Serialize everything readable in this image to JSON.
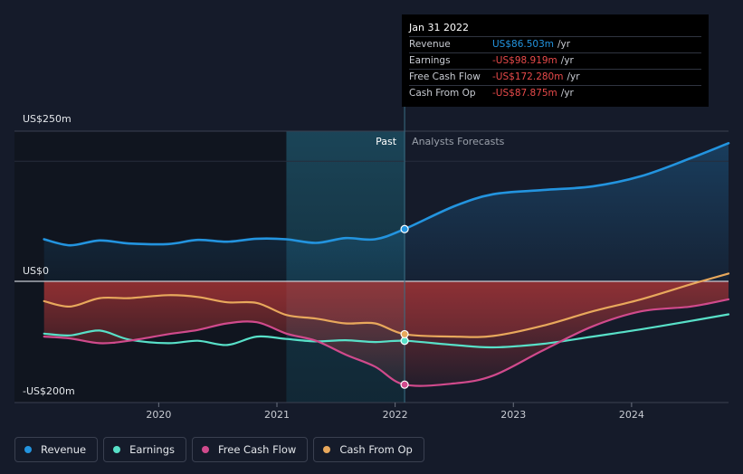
{
  "tooltip": {
    "date": "Jan 31 2022",
    "rows": [
      {
        "label": "Revenue",
        "value": "US$86.503m",
        "unit": "/yr",
        "color": "#2394df"
      },
      {
        "label": "Earnings",
        "value": "-US$98.919m",
        "unit": "/yr",
        "color": "#e84a4a"
      },
      {
        "label": "Free Cash Flow",
        "value": "-US$172.280m",
        "unit": "/yr",
        "color": "#e84a4a"
      },
      {
        "label": "Cash From Op",
        "value": "-US$87.875m",
        "unit": "/yr",
        "color": "#e84a4a"
      }
    ]
  },
  "legend": [
    {
      "label": "Revenue",
      "color": "#2394df"
    },
    {
      "label": "Earnings",
      "color": "#58e0c8"
    },
    {
      "label": "Free Cash Flow",
      "color": "#d04a8c"
    },
    {
      "label": "Cash From Op",
      "color": "#e8a85c"
    }
  ],
  "chart_data": {
    "type": "line",
    "y_labels": [
      "US$250m",
      "US$0",
      "-US$200m"
    ],
    "x_tick_labels": [
      "2020",
      "2021",
      "2022",
      "2023",
      "2024"
    ],
    "x_ticks": [
      2020.0,
      2021.0,
      2022.0,
      2023.0,
      2024.0
    ],
    "xlim": [
      2018.78,
      2024.82
    ],
    "ylim": [
      -200,
      250
    ],
    "past_label": "Past",
    "forecast_label": "Analysts Forecasts",
    "past_end": 2022.08,
    "highlight_start": 2021.08,
    "series": [
      {
        "name": "Revenue",
        "color": "#2394df",
        "x": [
          2019.03,
          2019.25,
          2019.5,
          2019.75,
          2020.08,
          2020.33,
          2020.58,
          2020.83,
          2021.08,
          2021.33,
          2021.58,
          2021.83,
          2022.08,
          2022.5,
          2022.83,
          2023.25,
          2023.67,
          2024.08,
          2024.5,
          2024.82
        ],
        "y": [
          70,
          60,
          68,
          63,
          62,
          69,
          66,
          71,
          70,
          64,
          72,
          70,
          87,
          125,
          145,
          152,
          158,
          175,
          205,
          230
        ]
      },
      {
        "name": "Earnings",
        "color": "#58e0c8",
        "x": [
          2019.03,
          2019.25,
          2019.5,
          2019.75,
          2020.08,
          2020.33,
          2020.58,
          2020.83,
          2021.08,
          2021.33,
          2021.58,
          2021.83,
          2022.08,
          2022.5,
          2022.83,
          2023.25,
          2023.67,
          2024.08,
          2024.5,
          2024.82
        ],
        "y": [
          -87,
          -90,
          -82,
          -97,
          -103,
          -99,
          -106,
          -92,
          -96,
          -100,
          -98,
          -101,
          -99,
          -106,
          -110,
          -104,
          -92,
          -80,
          -66,
          -55
        ]
      },
      {
        "name": "Free Cash Flow",
        "color": "#d04a8c",
        "x": [
          2019.03,
          2019.25,
          2019.5,
          2019.75,
          2020.08,
          2020.33,
          2020.58,
          2020.83,
          2021.08,
          2021.33,
          2021.58,
          2021.83,
          2022.08,
          2022.5,
          2022.83,
          2023.25,
          2023.67,
          2024.08,
          2024.5,
          2024.82
        ],
        "y": [
          -92,
          -95,
          -103,
          -99,
          -88,
          -81,
          -70,
          -68,
          -87,
          -99,
          -122,
          -142,
          -172,
          -170,
          -157,
          -115,
          -75,
          -50,
          -42,
          -30
        ]
      },
      {
        "name": "Cash From Op",
        "color": "#e8a85c",
        "x": [
          2019.03,
          2019.25,
          2019.5,
          2019.75,
          2020.08,
          2020.33,
          2020.58,
          2020.83,
          2021.08,
          2021.33,
          2021.58,
          2021.83,
          2022.08,
          2022.5,
          2022.83,
          2023.25,
          2023.67,
          2024.08,
          2024.5,
          2024.82
        ],
        "y": [
          -33,
          -42,
          -28,
          -28,
          -23,
          -26,
          -35,
          -36,
          -56,
          -62,
          -70,
          -70,
          -88,
          -92,
          -91,
          -74,
          -50,
          -30,
          -5,
          13
        ]
      }
    ]
  }
}
